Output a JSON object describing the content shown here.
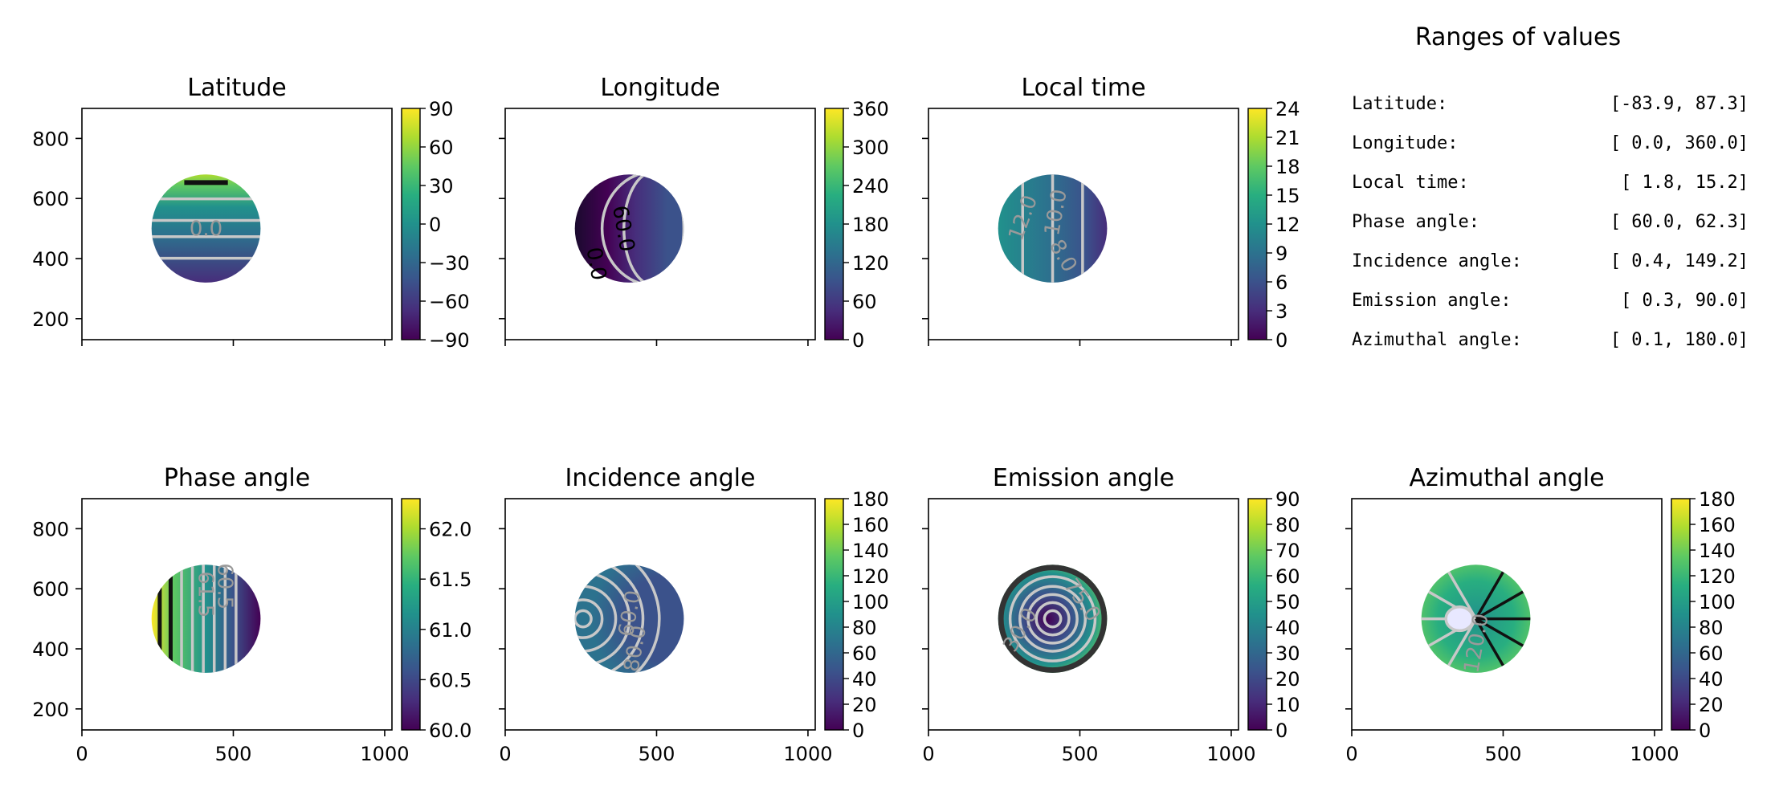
{
  "chart_data": [
    {
      "type": "heatmap",
      "title": "Latitude",
      "xlim": [
        0,
        1024
      ],
      "ylim": [
        130,
        900
      ],
      "xticks": [
        0,
        500,
        1000
      ],
      "yticks": [
        200,
        400,
        600,
        800
      ],
      "show_xtick_labels": false,
      "show_ytick_labels": true,
      "disk": {
        "cx": 410,
        "cy": 500,
        "r": 180
      },
      "colorbar": {
        "range": [
          -90,
          90
        ],
        "ticks": [
          90,
          60,
          30,
          0,
          -30,
          -60,
          -90
        ],
        "tick_labels": [
          "90",
          "60",
          "30",
          "0",
          "−30",
          "−60",
          "−90"
        ]
      },
      "contour_labels": [
        "0.0"
      ]
    },
    {
      "type": "heatmap",
      "title": "Longitude",
      "xlim": [
        0,
        1024
      ],
      "ylim": [
        130,
        900
      ],
      "xticks": [
        0,
        500,
        1000
      ],
      "yticks": [
        200,
        400,
        600,
        800
      ],
      "show_xtick_labels": false,
      "show_ytick_labels": false,
      "disk": {
        "cx": 410,
        "cy": 500,
        "r": 180
      },
      "colorbar": {
        "range": [
          0,
          360
        ],
        "ticks": [
          360,
          300,
          240,
          180,
          120,
          60,
          0
        ],
        "tick_labels": [
          "360",
          "300",
          "240",
          "180",
          "120",
          "60",
          "0"
        ]
      },
      "contour_labels": [
        "60.0",
        "0.0"
      ]
    },
    {
      "type": "heatmap",
      "title": "Local time",
      "xlim": [
        0,
        1024
      ],
      "ylim": [
        130,
        900
      ],
      "xticks": [
        0,
        500,
        1000
      ],
      "yticks": [
        200,
        400,
        600,
        800
      ],
      "show_xtick_labels": false,
      "show_ytick_labels": false,
      "disk": {
        "cx": 410,
        "cy": 500,
        "r": 180
      },
      "colorbar": {
        "range": [
          0,
          24
        ],
        "ticks": [
          24,
          21,
          18,
          15,
          12,
          9,
          6,
          3,
          0
        ],
        "tick_labels": [
          "24",
          "21",
          "18",
          "15",
          "12",
          "9",
          "6",
          "3",
          "0"
        ]
      },
      "contour_labels": [
        "12.0",
        "10.0",
        "8.0"
      ]
    },
    {
      "type": "heatmap",
      "title": "Phase angle",
      "xlim": [
        0,
        1024
      ],
      "ylim": [
        130,
        900
      ],
      "xticks": [
        0,
        500,
        1000
      ],
      "yticks": [
        200,
        400,
        600,
        800
      ],
      "show_xtick_labels": true,
      "show_ytick_labels": true,
      "disk": {
        "cx": 410,
        "cy": 500,
        "r": 180
      },
      "colorbar": {
        "range": [
          60.0,
          62.3
        ],
        "ticks": [
          62.0,
          61.5,
          61.0,
          60.5,
          60.0
        ],
        "tick_labels": [
          "62.0",
          "61.5",
          "61.0",
          "60.5",
          "60.0"
        ]
      },
      "contour_labels": [
        "61.5",
        "60.5"
      ]
    },
    {
      "type": "heatmap",
      "title": "Incidence angle",
      "xlim": [
        0,
        1024
      ],
      "ylim": [
        130,
        900
      ],
      "xticks": [
        0,
        500,
        1000
      ],
      "yticks": [
        200,
        400,
        600,
        800
      ],
      "show_xtick_labels": true,
      "show_ytick_labels": false,
      "disk": {
        "cx": 410,
        "cy": 500,
        "r": 180
      },
      "colorbar": {
        "range": [
          0,
          180
        ],
        "ticks": [
          180,
          160,
          140,
          120,
          100,
          80,
          60,
          40,
          20,
          0
        ],
        "tick_labels": [
          "180",
          "160",
          "140",
          "120",
          "100",
          "80",
          "60",
          "40",
          "20",
          "0"
        ]
      },
      "contour_labels": [
        "60.0",
        "80.0"
      ]
    },
    {
      "type": "heatmap",
      "title": "Emission angle",
      "xlim": [
        0,
        1024
      ],
      "ylim": [
        130,
        900
      ],
      "xticks": [
        0,
        500,
        1000
      ],
      "yticks": [
        200,
        400,
        600,
        800
      ],
      "show_xtick_labels": true,
      "show_ytick_labels": false,
      "disk": {
        "cx": 410,
        "cy": 500,
        "r": 180
      },
      "colorbar": {
        "range": [
          0,
          90
        ],
        "ticks": [
          90,
          80,
          70,
          60,
          50,
          40,
          30,
          20,
          10,
          0
        ],
        "tick_labels": [
          "90",
          "80",
          "70",
          "60",
          "50",
          "40",
          "30",
          "20",
          "10",
          "0"
        ]
      },
      "contour_labels": [
        "75.0",
        "30.0"
      ]
    },
    {
      "type": "heatmap",
      "title": "Azimuthal angle",
      "xlim": [
        0,
        1024
      ],
      "ylim": [
        130,
        900
      ],
      "xticks": [
        0,
        500,
        1000
      ],
      "yticks": [
        200,
        400,
        600,
        800
      ],
      "show_xtick_labels": true,
      "show_ytick_labels": false,
      "disk": {
        "cx": 410,
        "cy": 500,
        "r": 180
      },
      "colorbar": {
        "range": [
          0,
          180
        ],
        "ticks": [
          180,
          160,
          140,
          120,
          100,
          80,
          60,
          40,
          20,
          0
        ],
        "tick_labels": [
          "180",
          "160",
          "140",
          "120",
          "100",
          "80",
          "60",
          "40",
          "20",
          "0"
        ]
      },
      "contour_labels": [
        "120.0"
      ]
    }
  ],
  "ranges": {
    "title": "Ranges of values",
    "rows": [
      {
        "name": "Latitude:",
        "value": "[-83.9,  87.3]"
      },
      {
        "name": "Longitude:",
        "value": "[  0.0, 360.0]"
      },
      {
        "name": "Local time:",
        "value": "[  1.8,  15.2]"
      },
      {
        "name": "Phase angle:",
        "value": "[ 60.0,  62.3]"
      },
      {
        "name": "Incidence angle:",
        "value": "[  0.4, 149.2]"
      },
      {
        "name": "Emission angle:",
        "value": "[  0.3,  90.0]"
      },
      {
        "name": "Azimuthal angle:",
        "value": "[  0.1, 180.0]"
      }
    ]
  },
  "colors": {
    "viridis": [
      "#440154",
      "#472d7b",
      "#3b528b",
      "#2c728e",
      "#21918c",
      "#28ae80",
      "#5ec962",
      "#addc30",
      "#fde725"
    ],
    "contour": "#c8c8c8",
    "contour_dark": "#111111"
  }
}
